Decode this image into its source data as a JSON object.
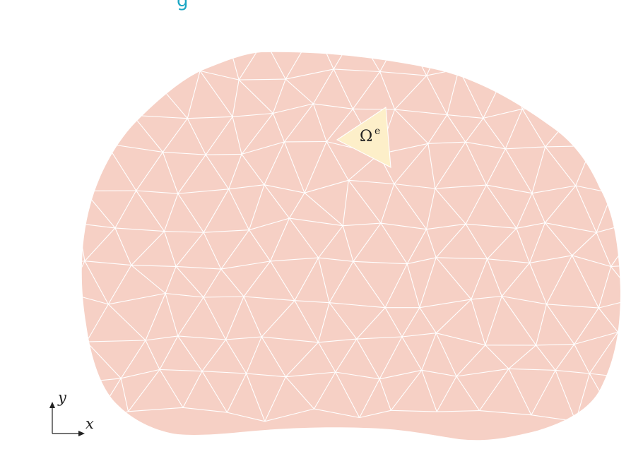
{
  "header": {
    "title_fragment": "g"
  },
  "diagram": {
    "colors": {
      "domain_fill": "#f6d0c5",
      "mesh_line": "#ffffff",
      "element_fill": "#fdefc9",
      "title": "#1aa6c4",
      "axis": "#222222"
    },
    "element_label": {
      "symbol": "Ω",
      "superscript": "e"
    },
    "axes": {
      "x_label": "x",
      "y_label": "y"
    }
  }
}
